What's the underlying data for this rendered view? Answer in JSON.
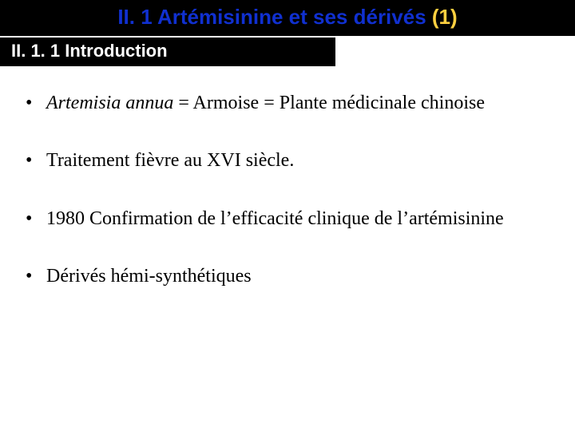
{
  "title": {
    "segments": [
      {
        "text": "II. 1 Artémisinine et ses dérivés ",
        "color": "#1030d0"
      },
      {
        "text": "(1)",
        "color": "#ffd040"
      }
    ]
  },
  "subtitle": "II. 1. 1 Introduction",
  "bullets": [
    {
      "parts": [
        {
          "text": "Artemisia annua",
          "italic": true
        },
        {
          "text": " = Armoise = Plante médicinale chinoise",
          "italic": false
        }
      ]
    },
    {
      "parts": [
        {
          "text": "Traitement fièvre au XVI siècle.",
          "italic": false
        }
      ]
    },
    {
      "parts": [
        {
          "text": "1980 Confirmation de l’efficacité clinique de l’artémisinine",
          "italic": false
        }
      ]
    },
    {
      "parts": [
        {
          "text": "Dérivés hémi-synthétiques",
          "italic": false
        }
      ]
    }
  ],
  "colors": {
    "bar_bg": "#000000",
    "page_bg": "#ffffff",
    "subtitle_text": "#ffffff",
    "title_main": "#1030d0",
    "title_accent": "#ffd040",
    "body_text": "#000000"
  }
}
